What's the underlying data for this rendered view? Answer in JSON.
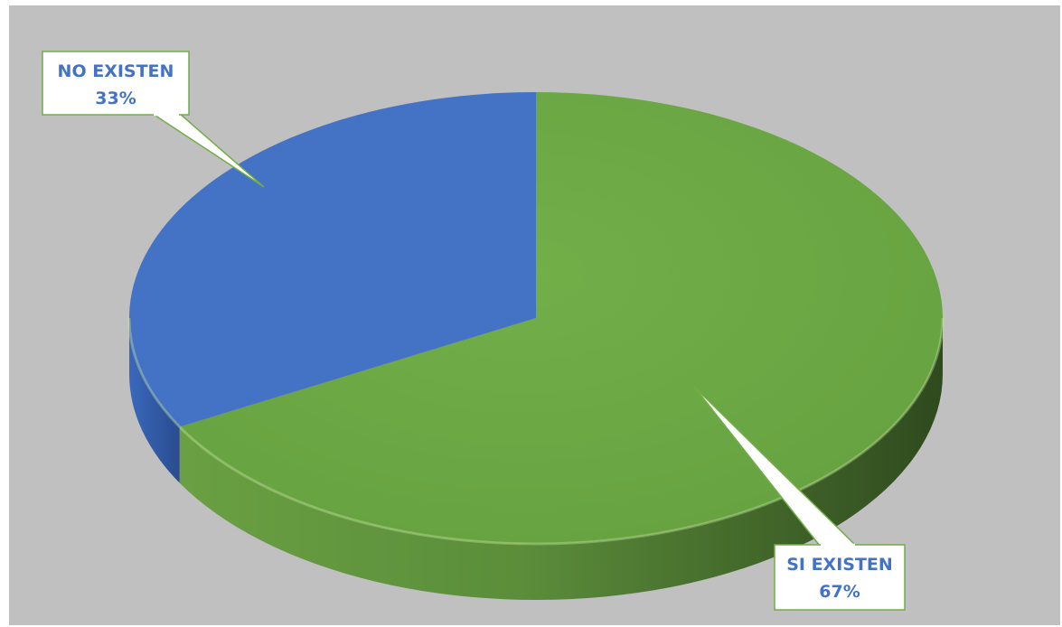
{
  "chart_data": {
    "type": "pie",
    "style": "3d",
    "title": "",
    "slices": [
      {
        "label": "SI EXISTEN",
        "value": 67,
        "display": "67%",
        "color": "#70AD47",
        "side_color": "#4E7A31",
        "label_color": "#4472C4",
        "label_border": "#70AD47"
      },
      {
        "label": "NO EXISTEN",
        "value": 33,
        "display": "33%",
        "color": "#4472C4",
        "side_color": "#2F5597",
        "label_color": "#4472C4",
        "label_border": "#70AD47"
      }
    ],
    "plot_background": "#C0C0C0",
    "legend": "none"
  }
}
